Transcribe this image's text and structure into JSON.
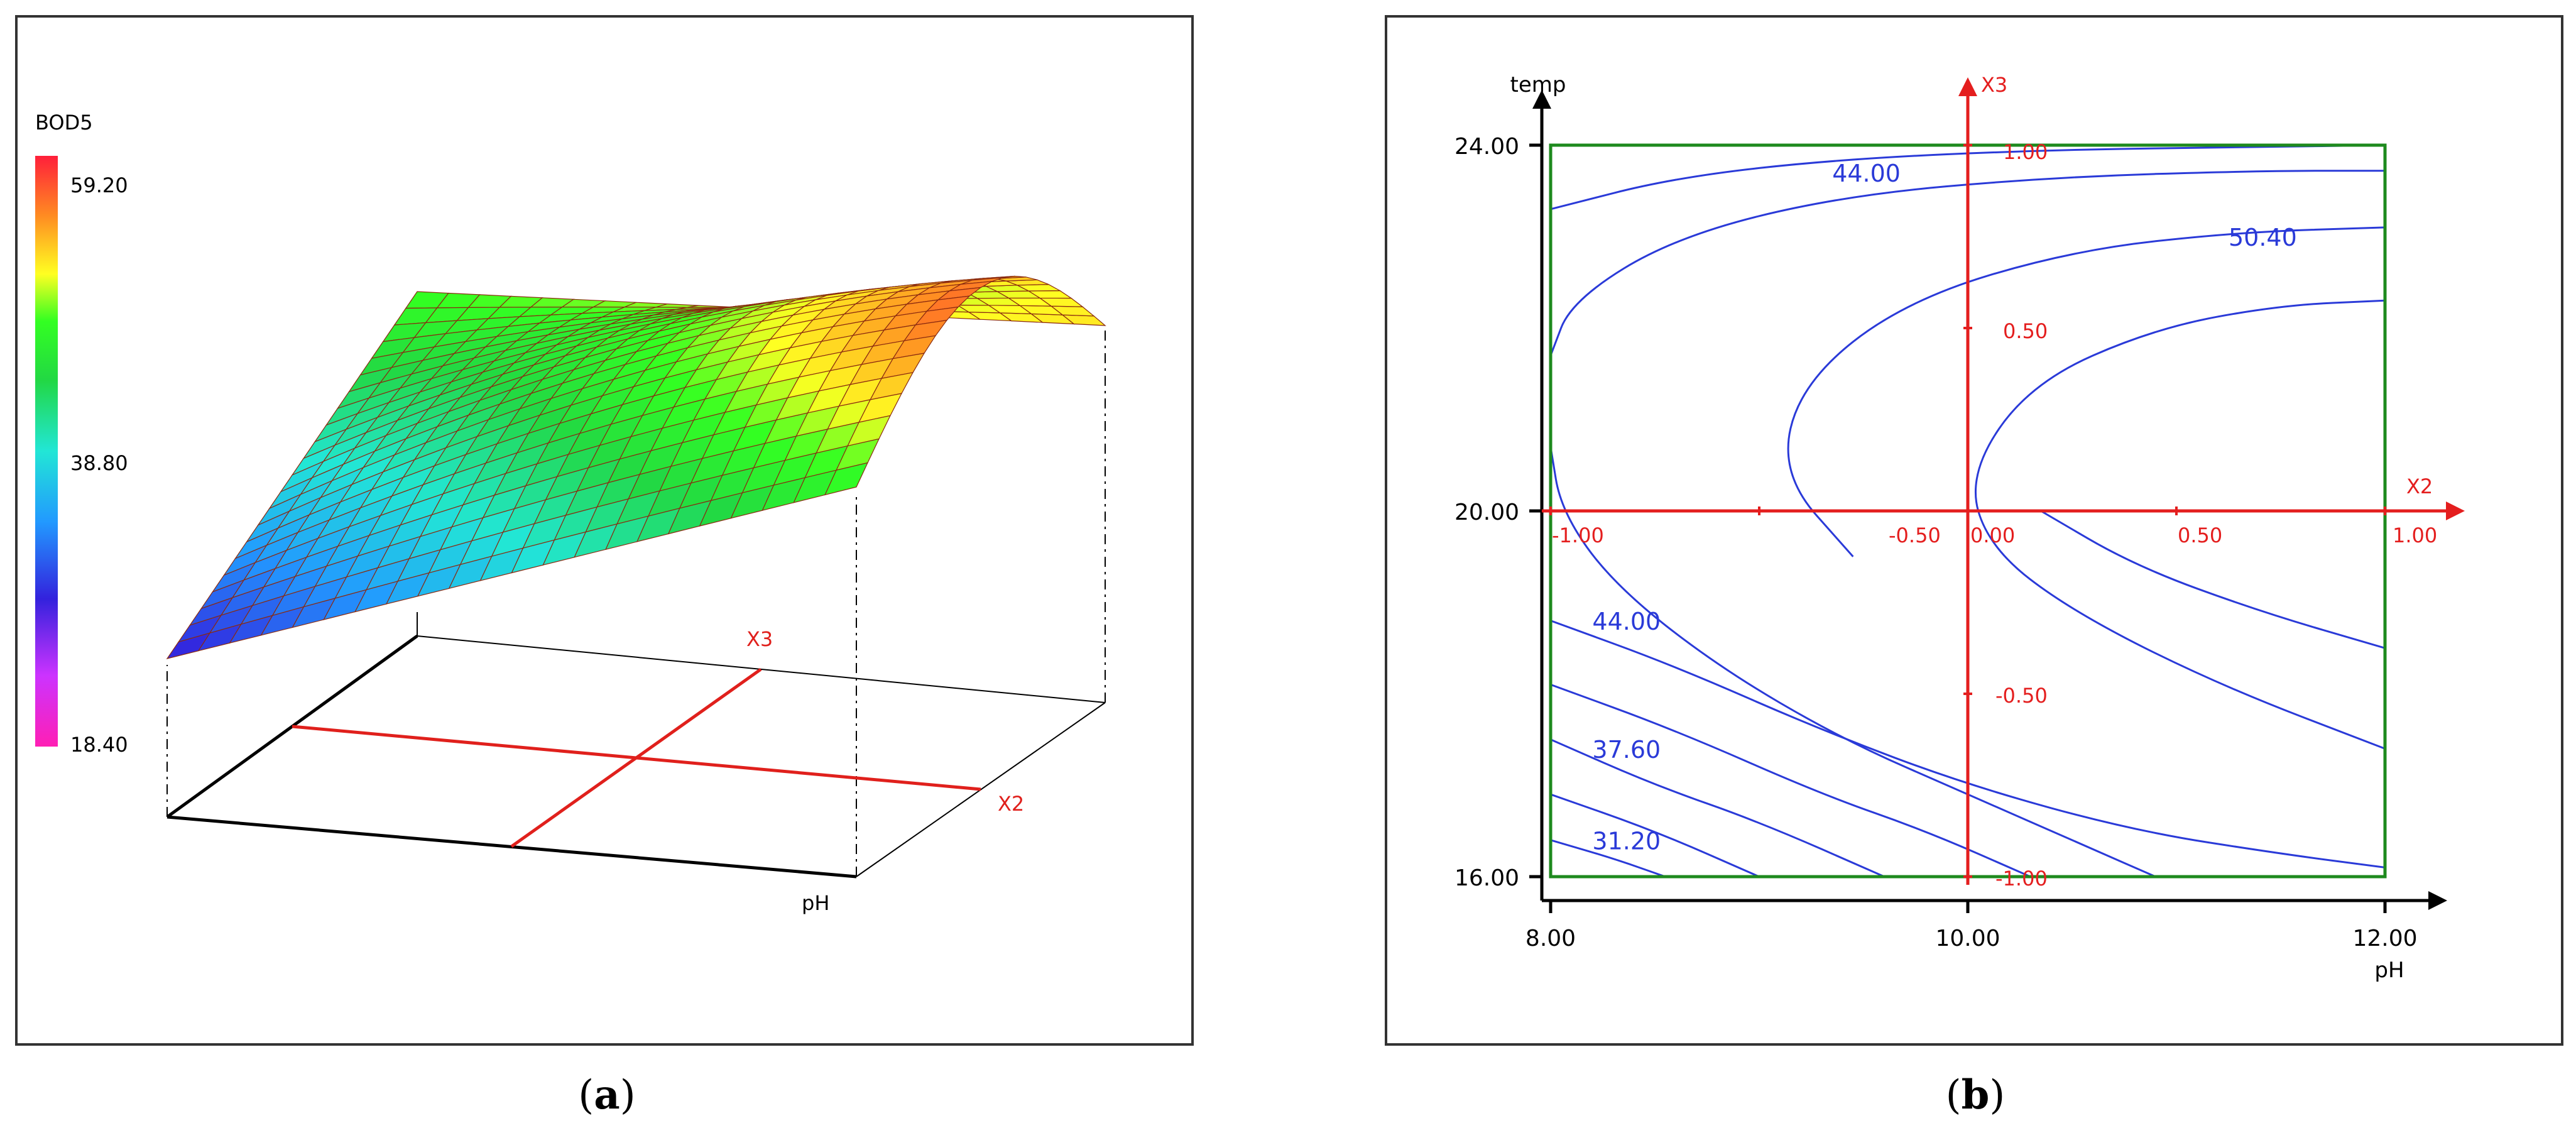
{
  "chart_data": [
    {
      "type": "surface",
      "panel": "a",
      "zlabel": "BOD5",
      "xlabel": "pH",
      "coded_labels": [
        "X3",
        "X2"
      ],
      "colorbar": {
        "min": 18.4,
        "max": 59.2,
        "ticks": [
          "59.20",
          "38.80",
          "18.40"
        ]
      },
      "surface_corner_values": {
        "front_left": 28,
        "front_right": 47,
        "back_left": 48,
        "back_right": 52,
        "peak": 59.2
      },
      "colors": {
        "grid_red": "#e0201c",
        "mesh_line": "#8a2a10"
      }
    },
    {
      "type": "contour",
      "panel": "b",
      "xlabel": "pH",
      "ylabel": "temp",
      "x_ticks": [
        "8.00",
        "10.00",
        "12.00"
      ],
      "y_ticks": [
        "16.00",
        "20.00",
        "24.00"
      ],
      "xlim": [
        8,
        12
      ],
      "ylim": [
        16,
        24
      ],
      "coded_axes": {
        "x2": {
          "label": "X2",
          "ticks": [
            "-1.00",
            "-0.50",
            "0.00",
            "0.50",
            "1.00"
          ]
        },
        "x3": {
          "label": "X3",
          "ticks": [
            "1.00",
            "0.50",
            "-0.50",
            "-1.00"
          ]
        }
      },
      "contour_labels": [
        {
          "text": "44.00",
          "x": 9.35,
          "y": 23.6
        },
        {
          "text": "50.40",
          "x": 11.25,
          "y": 22.9
        },
        {
          "text": "44.00",
          "x": 8.2,
          "y": 18.7
        },
        {
          "text": "37.60",
          "x": 8.2,
          "y": 17.3
        },
        {
          "text": "31.20",
          "x": 8.2,
          "y": 16.3
        }
      ],
      "colors": {
        "contour": "#2a3ad8",
        "coded": "#e41e1e",
        "frame": "#1e8a1e"
      }
    }
  ],
  "captions": {
    "a": "a",
    "b": "b"
  }
}
